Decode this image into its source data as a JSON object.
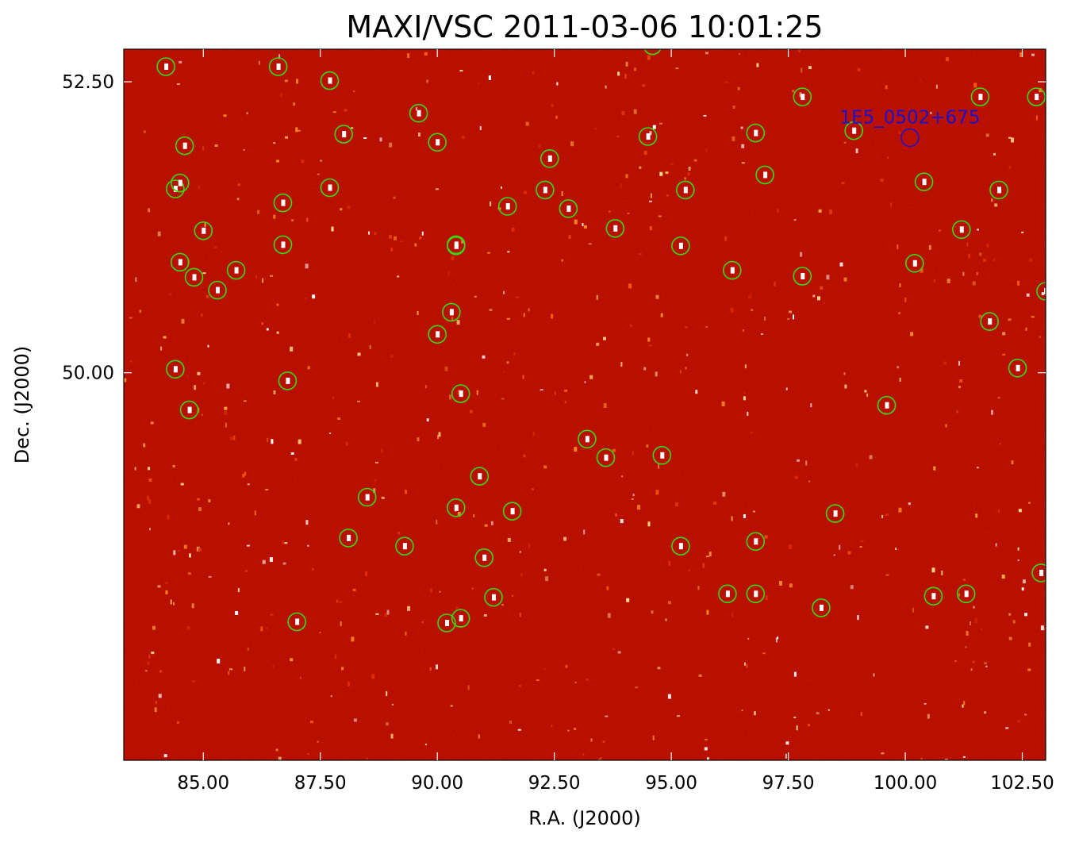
{
  "chart_data": {
    "type": "scatter",
    "title": "MAXI/VSC 2011-03-06 10:01:25",
    "xlabel": "R.A. (J2000)",
    "ylabel": "Dec. (J2000)",
    "xlim": [
      83.3,
      103.0
    ],
    "ylim": [
      46.67,
      52.78
    ],
    "x_ticks": [
      85.0,
      87.5,
      90.0,
      92.5,
      95.0,
      97.5,
      100.0,
      102.5
    ],
    "x_tick_labels": [
      "85.00",
      "87.50",
      "90.00",
      "92.50",
      "95.00",
      "97.50",
      "100.00",
      "102.50"
    ],
    "y_ticks": [
      50.0,
      52.5
    ],
    "y_tick_labels": [
      "50.00",
      "52.50"
    ],
    "image_colormap": "red-heat",
    "background_color": "#b50e00",
    "marker_color": "#33dd11",
    "target_color": "#1a11cc",
    "grid": false,
    "target": {
      "name": "1E5_0502+675",
      "x": 100.1,
      "y": 52.02
    },
    "series": [
      {
        "marker": "open-circle",
        "points": [
          [
            84.2,
            52.63
          ],
          [
            86.6,
            52.63
          ],
          [
            87.7,
            52.51
          ],
          [
            89.6,
            52.23
          ],
          [
            94.6,
            52.81
          ],
          [
            88.0,
            52.05
          ],
          [
            97.8,
            52.37
          ],
          [
            101.6,
            52.37
          ],
          [
            102.8,
            52.37
          ],
          [
            96.8,
            52.06
          ],
          [
            98.9,
            52.08
          ],
          [
            94.5,
            52.03
          ],
          [
            84.6,
            51.95
          ],
          [
            90.0,
            51.98
          ],
          [
            92.4,
            51.84
          ],
          [
            97.0,
            51.7
          ],
          [
            100.4,
            51.64
          ],
          [
            84.4,
            51.58
          ],
          [
            84.5,
            51.63
          ],
          [
            87.7,
            51.59
          ],
          [
            86.7,
            51.46
          ],
          [
            92.3,
            51.57
          ],
          [
            95.3,
            51.57
          ],
          [
            102.0,
            51.57
          ],
          [
            91.5,
            51.43
          ],
          [
            92.8,
            51.41
          ],
          [
            93.8,
            51.24
          ],
          [
            85.0,
            51.22
          ],
          [
            90.4,
            51.1
          ],
          [
            86.7,
            51.1
          ],
          [
            90.4,
            51.09
          ],
          [
            95.2,
            51.09
          ],
          [
            101.2,
            51.23
          ],
          [
            84.5,
            50.95
          ],
          [
            85.7,
            50.88
          ],
          [
            96.3,
            50.88
          ],
          [
            84.8,
            50.82
          ],
          [
            97.8,
            50.83
          ],
          [
            100.2,
            50.94
          ],
          [
            85.3,
            50.71
          ],
          [
            90.3,
            50.52
          ],
          [
            103.0,
            50.7
          ],
          [
            101.8,
            50.44
          ],
          [
            90.0,
            50.33
          ],
          [
            84.4,
            50.03
          ],
          [
            102.4,
            50.04
          ],
          [
            86.8,
            49.93
          ],
          [
            90.5,
            49.82
          ],
          [
            84.7,
            49.68
          ],
          [
            99.6,
            49.72
          ],
          [
            93.2,
            49.43
          ],
          [
            93.6,
            49.27
          ],
          [
            94.8,
            49.29
          ],
          [
            90.9,
            49.11
          ],
          [
            88.5,
            48.93
          ],
          [
            90.4,
            48.84
          ],
          [
            91.6,
            48.81
          ],
          [
            98.5,
            48.79
          ],
          [
            88.1,
            48.58
          ],
          [
            96.8,
            48.55
          ],
          [
            89.3,
            48.51
          ],
          [
            95.2,
            48.51
          ],
          [
            91.0,
            48.41
          ],
          [
            102.9,
            48.28
          ],
          [
            96.2,
            48.1
          ],
          [
            96.8,
            48.1
          ],
          [
            100.6,
            48.08
          ],
          [
            101.3,
            48.1
          ],
          [
            91.2,
            48.07
          ],
          [
            98.2,
            47.98
          ],
          [
            87.0,
            47.86
          ],
          [
            90.2,
            47.85
          ],
          [
            90.5,
            47.89
          ]
        ]
      }
    ]
  }
}
